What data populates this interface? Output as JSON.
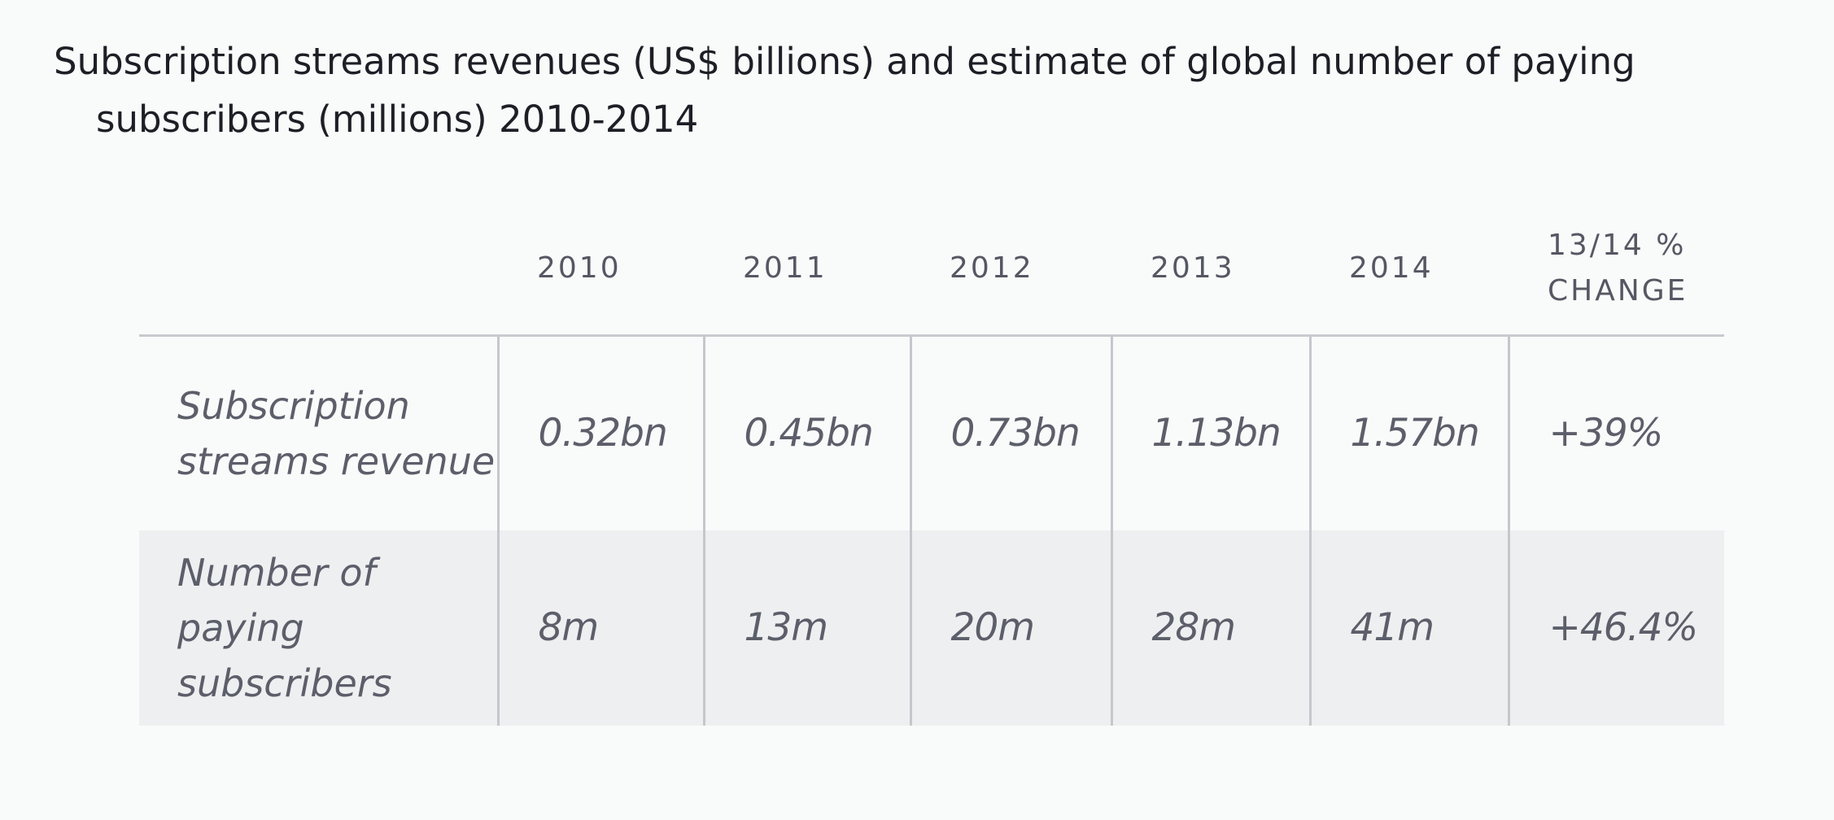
{
  "title": "Subscription streams revenues (US$ billions) and estimate of global number of paying subscribers (millions) 2010-2014",
  "table": {
    "headers": {
      "label": "",
      "y2010": "2010",
      "y2011": "2011",
      "y2012": "2012",
      "y2013": "2013",
      "y2014": "2014",
      "change_line1": "13/14 %",
      "change_line2": "CHANGE"
    },
    "rows": [
      {
        "label": "Subscription streams revenue",
        "y2010": "0.32bn",
        "y2011": "0.45bn",
        "y2012": "0.73bn",
        "y2013": "1.13bn",
        "y2014": "1.57bn",
        "change": "+39%"
      },
      {
        "label": "Number of paying subscribers",
        "y2010": "8m",
        "y2011": "13m",
        "y2012": "20m",
        "y2013": "28m",
        "y2014": "41m",
        "change": "+46.4%"
      }
    ]
  },
  "colors": {
    "background": "#f9fafa",
    "alt_row": "#edeff0",
    "rule": "#c8cacf",
    "title_text": "#1d1f26",
    "body_text": "#5c5f6a"
  }
}
